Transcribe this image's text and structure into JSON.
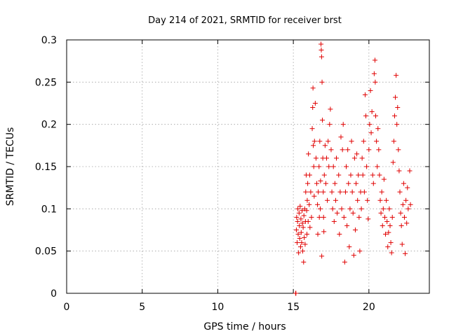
{
  "chart_data": {
    "type": "scatter",
    "title": "Day 214 of 2021, SRMTID for receiver brst",
    "xlabel": "GPS time / hours",
    "ylabel": "SRMTID / TECUs",
    "xlim": [
      0,
      24
    ],
    "ylim": [
      0,
      0.3
    ],
    "x_ticks": [
      "0",
      "5",
      "10",
      "15",
      "20"
    ],
    "y_ticks": [
      "0",
      "0.05",
      "0.1",
      "0.15",
      "0.2",
      "0.25",
      "0.3"
    ],
    "grid": true,
    "marker": "plus",
    "color": "#e00000",
    "series": [
      {
        "points": [
          [
            15.15,
            0.0
          ],
          [
            15.17,
            0.0
          ],
          [
            15.2,
            0.075
          ],
          [
            15.22,
            0.09
          ],
          [
            15.25,
            0.06
          ],
          [
            15.28,
            0.085
          ],
          [
            15.3,
            0.1
          ],
          [
            15.32,
            0.07
          ],
          [
            15.35,
            0.048
          ],
          [
            15.38,
            0.095
          ],
          [
            15.4,
            0.08
          ],
          [
            15.42,
            0.065
          ],
          [
            15.45,
            0.103
          ],
          [
            15.48,
            0.055
          ],
          [
            15.5,
            0.088
          ],
          [
            15.52,
            0.072
          ],
          [
            15.55,
            0.06
          ],
          [
            15.58,
            0.098
          ],
          [
            15.6,
            0.083
          ],
          [
            15.62,
            0.05
          ],
          [
            15.65,
            0.078
          ],
          [
            15.68,
            0.037
          ],
          [
            15.7,
            0.092
          ],
          [
            15.72,
            0.066
          ],
          [
            15.75,
            0.1
          ],
          [
            15.78,
            0.058
          ],
          [
            15.8,
            0.085
          ],
          [
            15.82,
            0.12
          ],
          [
            15.85,
            0.14
          ],
          [
            15.88,
            0.098
          ],
          [
            15.9,
            0.07
          ],
          [
            15.92,
            0.11
          ],
          [
            15.95,
            0.13
          ],
          [
            15.98,
            0.085
          ],
          [
            16.0,
            0.165
          ],
          [
            16.05,
            0.105
          ],
          [
            16.08,
            0.14
          ],
          [
            16.1,
            0.078
          ],
          [
            16.15,
            0.12
          ],
          [
            16.2,
            0.09
          ],
          [
            16.25,
            0.195
          ],
          [
            16.28,
            0.22
          ],
          [
            16.3,
            0.243
          ],
          [
            16.32,
            0.175
          ],
          [
            16.35,
            0.15
          ],
          [
            16.38,
            0.115
          ],
          [
            16.4,
            0.18
          ],
          [
            16.45,
            0.225
          ],
          [
            16.5,
            0.16
          ],
          [
            16.55,
            0.13
          ],
          [
            16.6,
            0.105
          ],
          [
            16.62,
            0.07
          ],
          [
            16.65,
            0.12
          ],
          [
            16.7,
            0.15
          ],
          [
            16.72,
            0.09
          ],
          [
            16.75,
            0.18
          ],
          [
            16.78,
            0.1
          ],
          [
            16.8,
            0.133
          ],
          [
            16.83,
            0.295
          ],
          [
            16.85,
            0.288
          ],
          [
            16.87,
            0.28
          ],
          [
            16.9,
            0.25
          ],
          [
            16.92,
            0.205
          ],
          [
            16.95,
            0.16
          ],
          [
            16.98,
            0.12
          ],
          [
            17.0,
            0.09
          ],
          [
            17.02,
            0.073
          ],
          [
            16.88,
            0.044
          ],
          [
            17.05,
            0.14
          ],
          [
            17.1,
            0.175
          ],
          [
            17.15,
            0.13
          ],
          [
            17.2,
            0.16
          ],
          [
            17.25,
            0.11
          ],
          [
            17.3,
            0.18
          ],
          [
            17.35,
            0.15
          ],
          [
            17.4,
            0.2
          ],
          [
            17.45,
            0.218
          ],
          [
            17.5,
            0.17
          ],
          [
            17.55,
            0.12
          ],
          [
            17.6,
            0.1
          ],
          [
            17.65,
            0.15
          ],
          [
            17.7,
            0.085
          ],
          [
            17.75,
            0.13
          ],
          [
            17.8,
            0.11
          ],
          [
            17.85,
            0.16
          ],
          [
            17.9,
            0.095
          ],
          [
            18.0,
            0.14
          ],
          [
            18.05,
            0.07
          ],
          [
            18.1,
            0.12
          ],
          [
            18.15,
            0.185
          ],
          [
            18.2,
            0.1
          ],
          [
            18.25,
            0.17
          ],
          [
            18.3,
            0.2
          ],
          [
            18.35,
            0.09
          ],
          [
            18.4,
            0.037
          ],
          [
            18.45,
            0.12
          ],
          [
            18.5,
            0.15
          ],
          [
            18.55,
            0.08
          ],
          [
            18.6,
            0.17
          ],
          [
            18.65,
            0.13
          ],
          [
            18.7,
            0.055
          ],
          [
            18.75,
            0.1
          ],
          [
            18.8,
            0.14
          ],
          [
            18.85,
            0.18
          ],
          [
            18.9,
            0.12
          ],
          [
            18.95,
            0.095
          ],
          [
            19.0,
            0.045
          ],
          [
            19.05,
            0.16
          ],
          [
            19.1,
            0.075
          ],
          [
            19.15,
            0.13
          ],
          [
            19.2,
            0.165
          ],
          [
            19.25,
            0.11
          ],
          [
            19.3,
            0.14
          ],
          [
            19.35,
            0.09
          ],
          [
            19.4,
            0.05
          ],
          [
            19.45,
            0.12
          ],
          [
            19.5,
            0.1
          ],
          [
            19.55,
            0.16
          ],
          [
            19.6,
            0.14
          ],
          [
            19.65,
            0.18
          ],
          [
            19.7,
            0.12
          ],
          [
            19.75,
            0.235
          ],
          [
            19.8,
            0.21
          ],
          [
            19.85,
            0.15
          ],
          [
            19.9,
            0.11
          ],
          [
            19.95,
            0.088
          ],
          [
            20.0,
            0.17
          ],
          [
            20.05,
            0.2
          ],
          [
            20.1,
            0.24
          ],
          [
            20.15,
            0.19
          ],
          [
            20.2,
            0.215
          ],
          [
            20.25,
            0.14
          ],
          [
            20.3,
            0.13
          ],
          [
            20.35,
            0.26
          ],
          [
            20.4,
            0.276
          ],
          [
            20.42,
            0.25
          ],
          [
            20.45,
            0.21
          ],
          [
            20.5,
            0.18
          ],
          [
            20.55,
            0.15
          ],
          [
            20.6,
            0.195
          ],
          [
            20.65,
            0.17
          ],
          [
            20.7,
            0.14
          ],
          [
            20.75,
            0.11
          ],
          [
            20.8,
            0.095
          ],
          [
            20.85,
            0.12
          ],
          [
            20.9,
            0.08
          ],
          [
            20.95,
            0.1
          ],
          [
            21.0,
            0.135
          ],
          [
            21.05,
            0.09
          ],
          [
            21.1,
            0.07
          ],
          [
            21.15,
            0.11
          ],
          [
            21.2,
            0.085
          ],
          [
            21.25,
            0.055
          ],
          [
            21.3,
            0.072
          ],
          [
            21.35,
            0.1
          ],
          [
            21.4,
            0.08
          ],
          [
            21.45,
            0.06
          ],
          [
            21.5,
            0.048
          ],
          [
            21.55,
            0.09
          ],
          [
            21.6,
            0.155
          ],
          [
            21.65,
            0.18
          ],
          [
            21.7,
            0.21
          ],
          [
            21.75,
            0.232
          ],
          [
            21.8,
            0.258
          ],
          [
            21.85,
            0.2
          ],
          [
            21.9,
            0.22
          ],
          [
            21.95,
            0.17
          ],
          [
            22.0,
            0.145
          ],
          [
            22.05,
            0.12
          ],
          [
            22.1,
            0.095
          ],
          [
            22.15,
            0.08
          ],
          [
            22.2,
            0.058
          ],
          [
            22.25,
            0.105
          ],
          [
            22.3,
            0.13
          ],
          [
            22.35,
            0.09
          ],
          [
            22.4,
            0.047
          ],
          [
            22.45,
            0.11
          ],
          [
            22.5,
            0.083
          ],
          [
            22.55,
            0.125
          ],
          [
            22.6,
            0.1
          ],
          [
            22.7,
            0.145
          ],
          [
            22.75,
            0.105
          ]
        ]
      }
    ]
  }
}
